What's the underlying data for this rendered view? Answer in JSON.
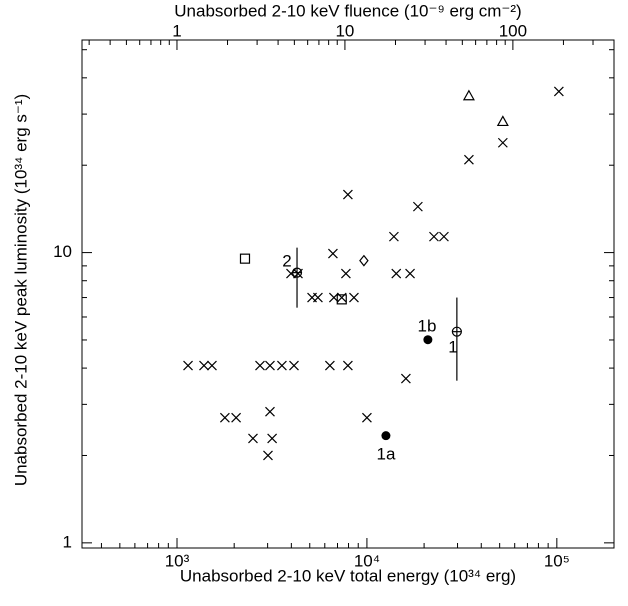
{
  "chart_data": {
    "type": "scatter",
    "xscale": "log",
    "yscale": "log",
    "x2scale": "log",
    "xlabel": "Unabsorbed 2-10 keV total energy (10³⁴ erg)",
    "ylabel": "Unabsorbed 2-10 keV peak luminosity (10³⁴ erg s⁻¹)",
    "x2label": "Unabsorbed 2-10 keV fluence (10⁻⁹ erg cm⁻²)",
    "xlim": [
      316,
      200000
    ],
    "ylim": [
      0.96,
      54
    ],
    "x2lim": [
      0.272,
      400
    ],
    "xticks": [
      {
        "value": 1000,
        "label": "10³"
      },
      {
        "value": 10000,
        "label": "10⁴"
      },
      {
        "value": 100000,
        "label": "10⁵"
      }
    ],
    "xminorticks": [
      400,
      500,
      600,
      700,
      800,
      900,
      2000,
      3000,
      4000,
      5000,
      6000,
      7000,
      8000,
      9000,
      20000,
      30000,
      40000,
      50000,
      60000,
      70000,
      80000,
      90000,
      200000
    ],
    "yticks": [
      1,
      10
    ],
    "yminorticks": [
      2,
      3,
      4,
      5,
      6,
      7,
      8,
      9,
      20,
      30,
      40,
      50
    ],
    "x2ticks": [
      1,
      10,
      100
    ],
    "x2minorticks": [
      0.3,
      0.4,
      0.5,
      0.6,
      0.7,
      0.8,
      0.9,
      2,
      3,
      4,
      5,
      6,
      7,
      8,
      9,
      20,
      30,
      40,
      50,
      60,
      70,
      80,
      90,
      200,
      300
    ],
    "series": [
      {
        "marker": "cross",
        "color": "#000000",
        "x": [
          1143,
          1787,
          2047,
          1387,
          1528,
          2735,
          3087,
          3568,
          4130,
          2512,
          3013,
          3087,
          3168,
          3982,
          4335,
          5140,
          5521,
          6383,
          6622,
          6700,
          7370,
          7750,
          7940,
          7940,
          8545,
          10000,
          13870,
          14270,
          16040,
          16870,
          18550,
          22540,
          25440,
          34440,
          51960,
          102500
        ],
        "y": [
          4.08,
          2.7,
          2.7,
          4.08,
          4.08,
          4.08,
          4.08,
          4.08,
          4.08,
          2.29,
          2.0,
          2.83,
          2.29,
          8.47,
          8.47,
          7.0,
          7.0,
          4.08,
          9.92,
          7.0,
          7.0,
          8.47,
          15.85,
          4.08,
          7.0,
          2.7,
          11.35,
          8.47,
          3.68,
          8.47,
          14.4,
          11.35,
          11.35,
          20.9,
          23.9,
          35.9
        ]
      },
      {
        "marker": "triangle",
        "color": "#000000",
        "x": [
          34440,
          51960
        ],
        "y": [
          34.7,
          28.3
        ]
      },
      {
        "marker": "square",
        "color": "#000000",
        "x": [
          2280,
          7370
        ],
        "y": [
          9.53,
          6.9
        ]
      },
      {
        "marker": "diamond",
        "color": "#000000",
        "x": [
          9640
        ],
        "y": [
          9.38
        ]
      },
      {
        "marker": "filled-circle",
        "color": "#000000",
        "x": [
          12590,
          20940
        ],
        "y": [
          2.34,
          5.01
        ]
      },
      {
        "marker": "circle-plus",
        "color": "#000000",
        "x": [
          4285,
          29760
        ],
        "y": [
          8.53,
          5.34
        ],
        "ylow": [
          6.46,
          3.62
        ],
        "yhigh": [
          10.4,
          7.0
        ]
      }
    ],
    "annotations": [
      "2",
      "1b",
      "1",
      "1a"
    ]
  }
}
